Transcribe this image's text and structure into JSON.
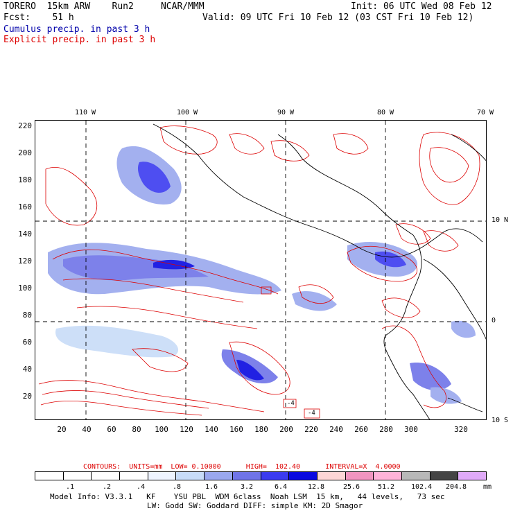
{
  "header": {
    "line1_left": "TORERO  15km ARW    Run2     NCAR/MMM",
    "line1_right": "Init: 06 UTC Wed 08 Feb 12",
    "line2_left": "Fcst:    51 h",
    "line2_right": "Valid: 09 UTC Fri 10 Feb 12 (03 CST Fri 10 Feb 12)",
    "legend_blue": "Cumulus precip. in past 3 h",
    "legend_red": "Explicit precip. in past 3 h"
  },
  "map": {
    "y_ticks": [
      "220",
      "200",
      "180",
      "160",
      "140",
      "120",
      "100",
      "80",
      "60",
      "40",
      "20"
    ],
    "x_ticks": [
      "20",
      "40",
      "60",
      "80",
      "100",
      "120",
      "140",
      "160",
      "180",
      "200",
      "220",
      "240",
      "260",
      "280",
      "300",
      "320"
    ],
    "lon_ticks": [
      "110 W",
      "100 W",
      "90 W",
      "80 W",
      "70 W"
    ],
    "lat_ticks": [
      "10 N",
      "0",
      "10 S"
    ],
    "box_labels": [
      "-4",
      "-4"
    ]
  },
  "contour_info": {
    "text": "CONTOURS:  UNITS=mm  LOW= 0.10000      HIGH=  102.40      INTERVAL=X  4.0000"
  },
  "colorbar": {
    "colors": [
      "#ffffff",
      "#ffffff",
      "#ffffff",
      "#ffffff",
      "#eef4ff",
      "#c8dcf8",
      "#9aa8ee",
      "#6f74e8",
      "#3b3bf0",
      "#0a0ae0",
      "#fdd6d6",
      "#f095c0",
      "#ffb3d9",
      "#b8b8b8",
      "#444444",
      "#e0aaf8"
    ],
    "labels": [
      ".1",
      ".2",
      ".4",
      ".8",
      "1.6",
      "3.2",
      "6.4",
      "12.8",
      "25.6",
      "51.2",
      "102.4",
      "204.8"
    ],
    "unit": "mm"
  },
  "model_info": {
    "line1": "Model Info: V3.3.1   KF    YSU PBL  WDM 6class  Noah LSM  15 km,   44 levels,   73 sec",
    "line2": "LW: Godd SW: Goddard DIFF: simple KM: 2D Smagor"
  }
}
